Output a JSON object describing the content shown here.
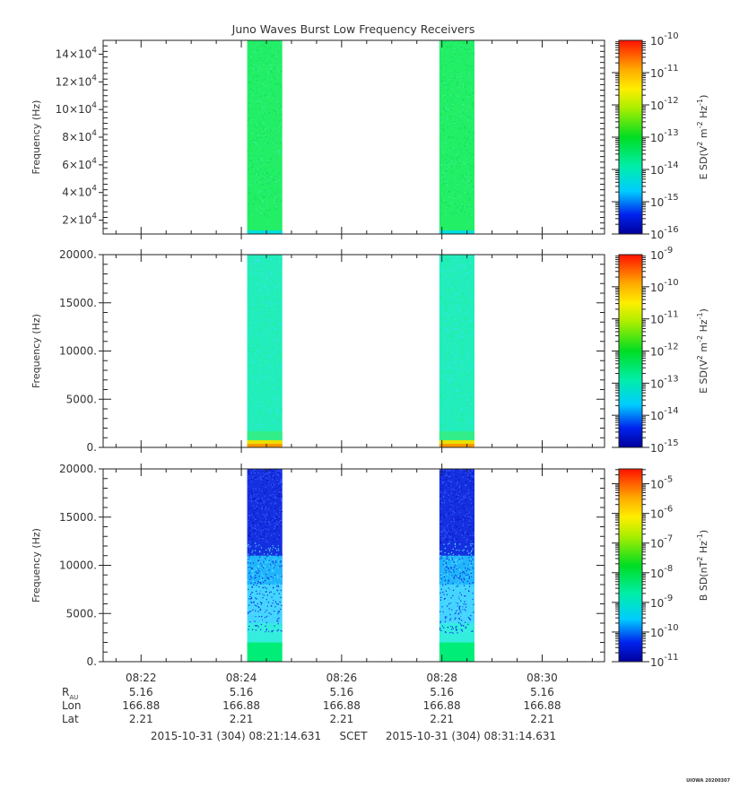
{
  "title": "Juno Waves Burst Low Frequency Receivers",
  "chart_data": [
    {
      "type": "heatmap",
      "panel": "top",
      "ylabel": "Frequency (Hz)",
      "ylim": [
        10000,
        150000
      ],
      "yticks": [
        20000,
        40000,
        60000,
        80000,
        100000,
        120000,
        140000
      ],
      "ytick_labels": [
        {
          "mant": "2×10",
          "exp": "4"
        },
        {
          "mant": "4×10",
          "exp": "4"
        },
        {
          "mant": "6×10",
          "exp": "4"
        },
        {
          "mant": "8×10",
          "exp": "4"
        },
        {
          "mant": "10×10",
          "exp": "4"
        },
        {
          "mant": "12×10",
          "exp": "4"
        },
        {
          "mant": "14×10",
          "exp": "4"
        }
      ],
      "colorbar": {
        "label": {
          "pre": "E SD(V",
          "e1": "2",
          "mid": " m",
          "e2": "-2",
          "mid2": " Hz",
          "e3": "-1",
          "post": ")"
        },
        "scale": "log",
        "range_exp": [
          -16,
          -10
        ],
        "tick_labels": [
          {
            "exp": "-16"
          },
          {
            "exp": "-15"
          },
          {
            "exp": "-14"
          },
          {
            "exp": "-13"
          },
          {
            "exp": "-12"
          },
          {
            "exp": "-11"
          },
          {
            "exp": "-10"
          }
        ]
      },
      "bursts": [
        {
          "start": "08:24:07",
          "end": "08:24:49",
          "base_color": "#22ee66",
          "bottom_color": "#00e0e0"
        },
        {
          "start": "08:27:57",
          "end": "08:28:39",
          "base_color": "#22ee66",
          "bottom_color": "#00e0e0"
        }
      ]
    },
    {
      "type": "heatmap",
      "panel": "middle",
      "ylabel": "Frequency (Hz)",
      "ylim": [
        0,
        20000
      ],
      "yticks": [
        0,
        5000,
        10000,
        15000,
        20000
      ],
      "ytick_labels": [
        {
          "mant": "0.",
          "exp": ""
        },
        {
          "mant": "5000.",
          "exp": ""
        },
        {
          "mant": "10000.",
          "exp": ""
        },
        {
          "mant": "15000.",
          "exp": ""
        },
        {
          "mant": "20000.",
          "exp": ""
        }
      ],
      "colorbar": {
        "label": {
          "pre": "E SD(V",
          "e1": "2",
          "mid": " m",
          "e2": "-2",
          "mid2": " Hz",
          "e3": "-1",
          "post": ")"
        },
        "scale": "log",
        "range_exp": [
          -15,
          -9
        ],
        "tick_labels": [
          {
            "exp": "-15"
          },
          {
            "exp": "-14"
          },
          {
            "exp": "-13"
          },
          {
            "exp": "-12"
          },
          {
            "exp": "-11"
          },
          {
            "exp": "-10"
          },
          {
            "exp": "-9"
          }
        ]
      },
      "bursts": [
        {
          "start": "08:24:07",
          "end": "08:24:49",
          "base_color": "#22eebb",
          "bottom_color": "#e8e000"
        },
        {
          "start": "08:27:57",
          "end": "08:28:39",
          "base_color": "#22eebb",
          "bottom_color": "#e8e000"
        }
      ]
    },
    {
      "type": "heatmap",
      "panel": "bottom",
      "ylabel": "Frequency (Hz)",
      "ylim": [
        0,
        20000
      ],
      "yticks": [
        0,
        5000,
        10000,
        15000,
        20000
      ],
      "ytick_labels": [
        {
          "mant": "0.",
          "exp": ""
        },
        {
          "mant": "5000.",
          "exp": ""
        },
        {
          "mant": "10000.",
          "exp": ""
        },
        {
          "mant": "15000.",
          "exp": ""
        },
        {
          "mant": "20000.",
          "exp": ""
        }
      ],
      "colorbar": {
        "label": {
          "pre": "B SD(nT",
          "e1": "2",
          "mid": " Hz",
          "e2": "-1",
          "mid2": "",
          "e3": "",
          "post": ")"
        },
        "scale": "log",
        "range_exp": [
          -11,
          -4.5
        ],
        "tick_labels": [
          {
            "exp": "-11"
          },
          {
            "exp": "-10"
          },
          {
            "exp": "-9"
          },
          {
            "exp": "-8"
          },
          {
            "exp": "-7"
          },
          {
            "exp": "-6"
          },
          {
            "exp": "-5"
          }
        ]
      },
      "bursts": [
        {
          "start": "08:24:07",
          "end": "08:24:49",
          "base_color": "#1530e0",
          "mid_color": "#22ccff",
          "bottom_color": "#00ee77"
        },
        {
          "start": "08:27:57",
          "end": "08:28:39",
          "base_color": "#1530e0",
          "mid_color": "#22ccff",
          "bottom_color": "#00ee77"
        }
      ]
    }
  ],
  "x_axis": {
    "range": [
      "08:21:14.631",
      "08:31:14.631"
    ],
    "ticks": [
      "08:22",
      "08:24",
      "08:26",
      "08:28",
      "08:30"
    ]
  },
  "ephemeris": {
    "rows": [
      {
        "label": "R",
        "sub": "AU",
        "values": [
          "5.16",
          "5.16",
          "5.16",
          "5.16",
          "5.16"
        ]
      },
      {
        "label": "Lon",
        "sub": "",
        "values": [
          "166.88",
          "166.88",
          "166.88",
          "166.88",
          "166.88"
        ]
      },
      {
        "label": "Lat",
        "sub": "",
        "values": [
          "2.21",
          "2.21",
          "2.21",
          "2.21",
          "2.21"
        ]
      }
    ]
  },
  "time_range": {
    "start": "2015-10-31 (304) 08:21:14.631",
    "label": "SCET",
    "end": "2015-10-31 (304) 08:31:14.631"
  },
  "footer": "UIOWA 20200307"
}
